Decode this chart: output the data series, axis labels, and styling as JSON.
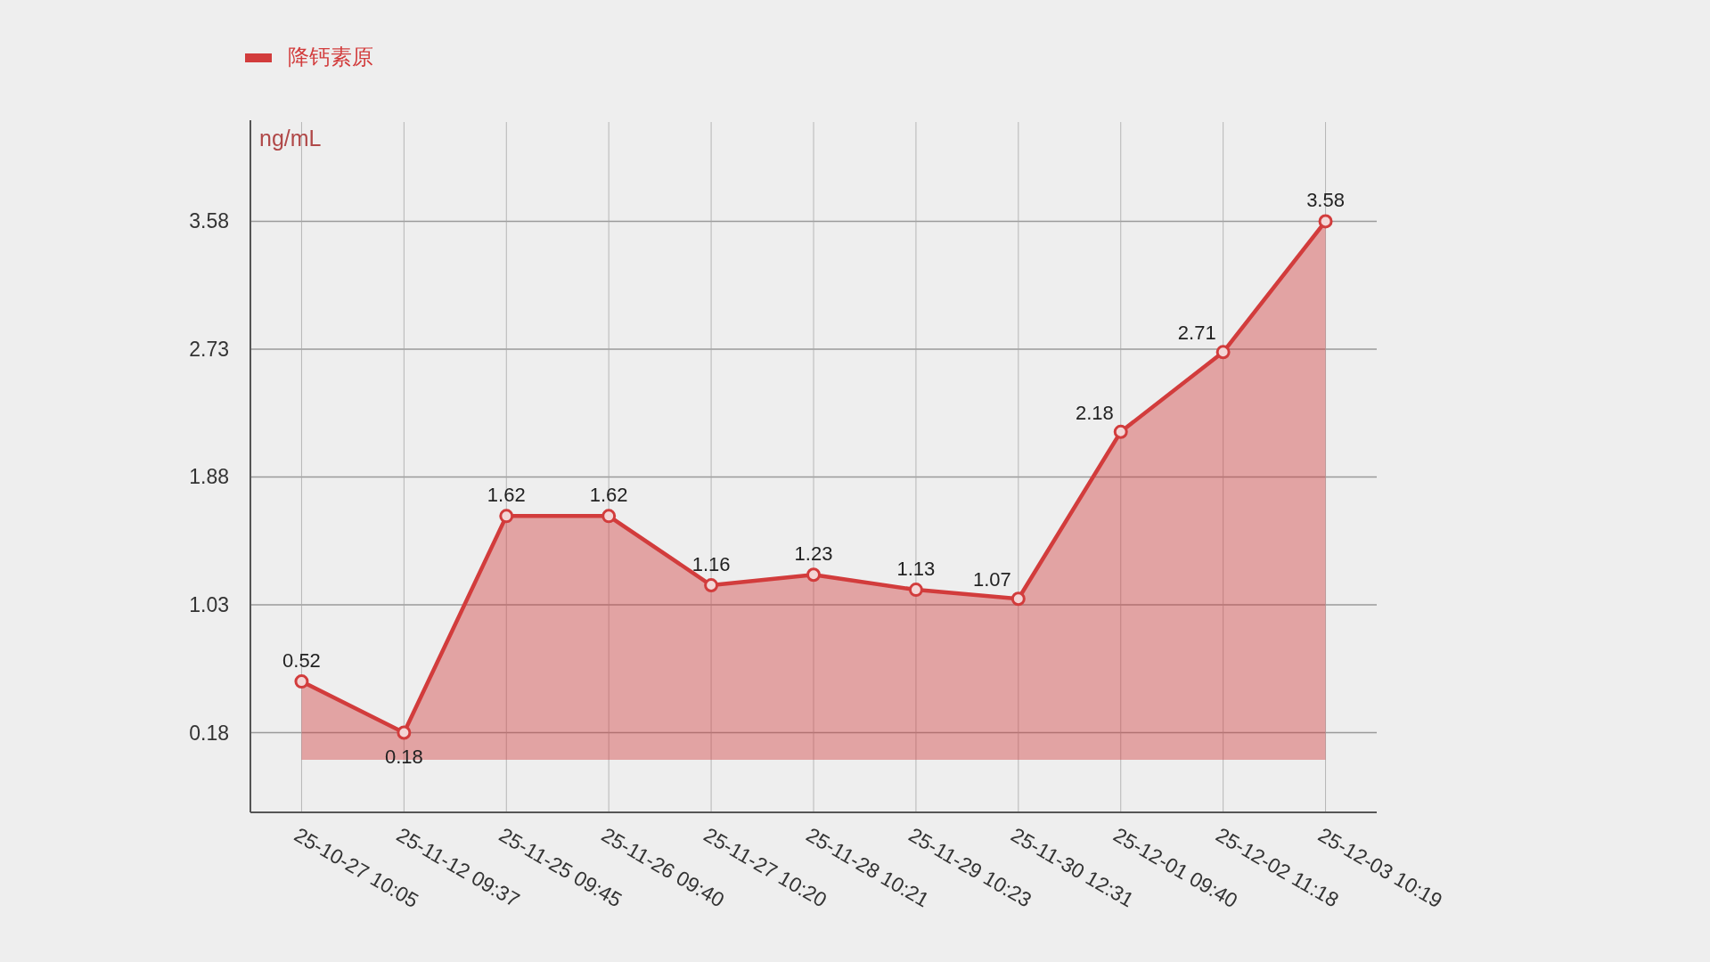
{
  "chart_data": {
    "type": "area",
    "ylabel": "ng/mL",
    "categories": [
      "25-10-27 10:05",
      "25-11-12 09:37",
      "25-11-25 09:45",
      "25-11-26 09:40",
      "25-11-27 10:20",
      "25-11-28 10:21",
      "25-11-29 10:23",
      "25-11-30 12:31",
      "25-12-01 09:40",
      "25-12-02 11:18",
      "25-12-03 10:19"
    ],
    "series": [
      {
        "name": "降钙素原",
        "color": "#d23c3c",
        "values": [
          0.52,
          0.18,
          1.62,
          1.62,
          1.16,
          1.23,
          1.13,
          1.07,
          2.18,
          2.71,
          3.58
        ]
      }
    ],
    "ylim": [
      -0.35,
      4.24
    ],
    "yticks": [
      0.18,
      1.03,
      1.88,
      2.73,
      3.58
    ],
    "grid": true,
    "legend": "top left",
    "marker": "circle",
    "data_labels": true
  }
}
